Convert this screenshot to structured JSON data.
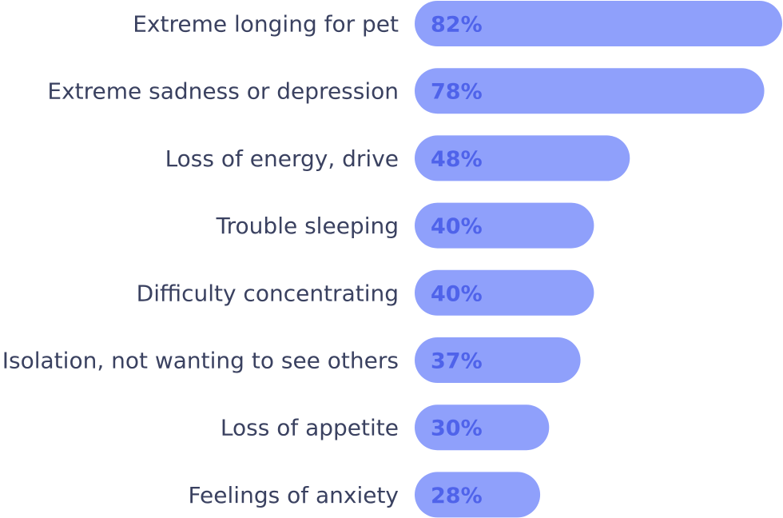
{
  "colors": {
    "bar": "#8fa0fb",
    "value_text": "#4f63ea",
    "label_text": "#3a4160"
  },
  "chart_data": {
    "type": "bar",
    "orientation": "horizontal",
    "title": "",
    "xlabel": "",
    "ylabel": "",
    "xlim": [
      0,
      100
    ],
    "grid": false,
    "categories": [
      "Extreme longing for pet",
      "Extreme sadness or depression",
      "Loss of energy, drive",
      "Trouble sleeping",
      "Difficulty concentrating",
      "Isolation, not wanting to see others",
      "Loss of appetite",
      "Feelings of anxiety"
    ],
    "values": [
      82,
      78,
      48,
      40,
      40,
      37,
      30,
      28
    ],
    "value_labels": [
      "82%",
      "78%",
      "48%",
      "40%",
      "40%",
      "37%",
      "30%",
      "28%"
    ]
  }
}
